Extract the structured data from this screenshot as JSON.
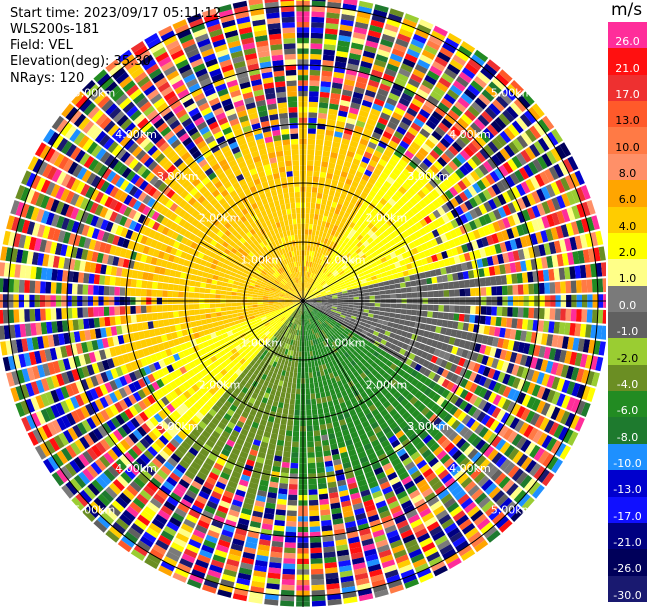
{
  "header": {
    "start_time": "Start time: 2023/09/17 05:11:12",
    "site": "WLS200s-181",
    "field": "Field: VEL",
    "elevation": "Elevation(deg): 35.30",
    "nrays": "NRays: 120"
  },
  "colorbar": {
    "unit": "m/s",
    "levels": [
      {
        "label": "26.0",
        "color": "#ff2d9a"
      },
      {
        "label": "21.0",
        "color": "#ff1010"
      },
      {
        "label": "17.0",
        "color": "#ee3030"
      },
      {
        "label": "13.0",
        "color": "#ff5a2a"
      },
      {
        "label": "10.0",
        "color": "#ff7a45"
      },
      {
        "label": "8.0",
        "color": "#ff9068"
      },
      {
        "label": "6.0",
        "color": "#ffa500"
      },
      {
        "label": "4.0",
        "color": "#ffcc00"
      },
      {
        "label": "2.0",
        "color": "#ffff00"
      },
      {
        "label": "1.0",
        "color": "#ffff88"
      },
      {
        "label": "0.0",
        "color": "#7a7a7a"
      },
      {
        "label": "-1.0",
        "color": "#606060"
      },
      {
        "label": "-2.0",
        "color": "#9acd32"
      },
      {
        "label": "-4.0",
        "color": "#6b8e23"
      },
      {
        "label": "-6.0",
        "color": "#228b22"
      },
      {
        "label": "-8.0",
        "color": "#1e7a2e"
      },
      {
        "label": "-10.0",
        "color": "#1e90ff"
      },
      {
        "label": "-13.0",
        "color": "#0000cd"
      },
      {
        "label": "-17.0",
        "color": "#1010ff"
      },
      {
        "label": "-21.0",
        "color": "#000080"
      },
      {
        "label": "-26.0",
        "color": "#00005a"
      },
      {
        "label": "-30.0",
        "color": "#191970"
      }
    ]
  },
  "chart_data": {
    "type": "heatmap",
    "subtype": "radar PPI (polar plot)",
    "field": "VEL",
    "unit": "m/s",
    "n_rays": 120,
    "range_rings": [
      {
        "label": "1.00km"
      },
      {
        "label": "2.00km"
      },
      {
        "label": "3.00km"
      },
      {
        "label": "4.00km"
      },
      {
        "label": "5.00km"
      }
    ],
    "pattern_summary": {
      "near_range_max_km": 3.0,
      "dominant_velocity_by_sector": [
        {
          "sector": "west to north (upper left)",
          "velocity": 4.0
        },
        {
          "sector": "north-east (upper right)",
          "velocity": 2.0
        },
        {
          "sector": "east (right)",
          "velocity": -1.0
        },
        {
          "sector": "south-east (lower right)",
          "velocity": -6.0
        },
        {
          "sector": "south (bottom)",
          "velocity": -6.0
        },
        {
          "sector": "south-west (lower left)",
          "velocity": -4.0
        },
        {
          "sector": "west (left)",
          "velocity": 2.0
        }
      ],
      "far_range": "noisy, all colors"
    }
  }
}
